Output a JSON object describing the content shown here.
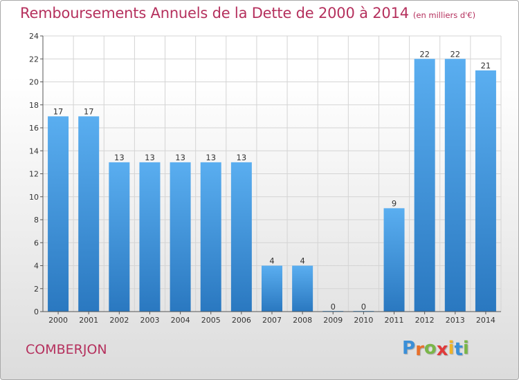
{
  "header": {
    "title": "Remboursements Annuels de la Dette de 2000 à 2014",
    "subtitle": "(en milliers d'€)"
  },
  "footer": {
    "commune": "COMBERJON",
    "logo": {
      "letters": [
        "P",
        "r",
        "o",
        "x",
        "i",
        "t",
        "i"
      ],
      "colors": [
        "#3a8fd8",
        "#e8702a",
        "#7ab648",
        "#e03a3a",
        "#f0b428",
        "#3a8fd8",
        "#7ab648"
      ]
    }
  },
  "colors": {
    "bar_top": "#5aaef0",
    "bar_bottom": "#2a78c0",
    "grid": "#d4d4d4",
    "axis": "#555555"
  },
  "chart_data": {
    "type": "bar",
    "title": "Remboursements Annuels de la Dette de 2000 à 2014",
    "subtitle": "(en milliers d'€)",
    "xlabel": "",
    "ylabel": "",
    "categories": [
      "2000",
      "2001",
      "2002",
      "2003",
      "2004",
      "2005",
      "2006",
      "2007",
      "2008",
      "2009",
      "2010",
      "2011",
      "2012",
      "2013",
      "2014"
    ],
    "values": [
      17,
      17,
      13,
      13,
      13,
      13,
      13,
      4,
      4,
      0,
      0,
      9,
      22,
      22,
      21
    ],
    "ylim": [
      0,
      24
    ],
    "yticks": [
      0,
      2,
      4,
      6,
      8,
      10,
      12,
      14,
      16,
      18,
      20,
      22,
      24
    ],
    "grid": true,
    "data_labels": true
  }
}
